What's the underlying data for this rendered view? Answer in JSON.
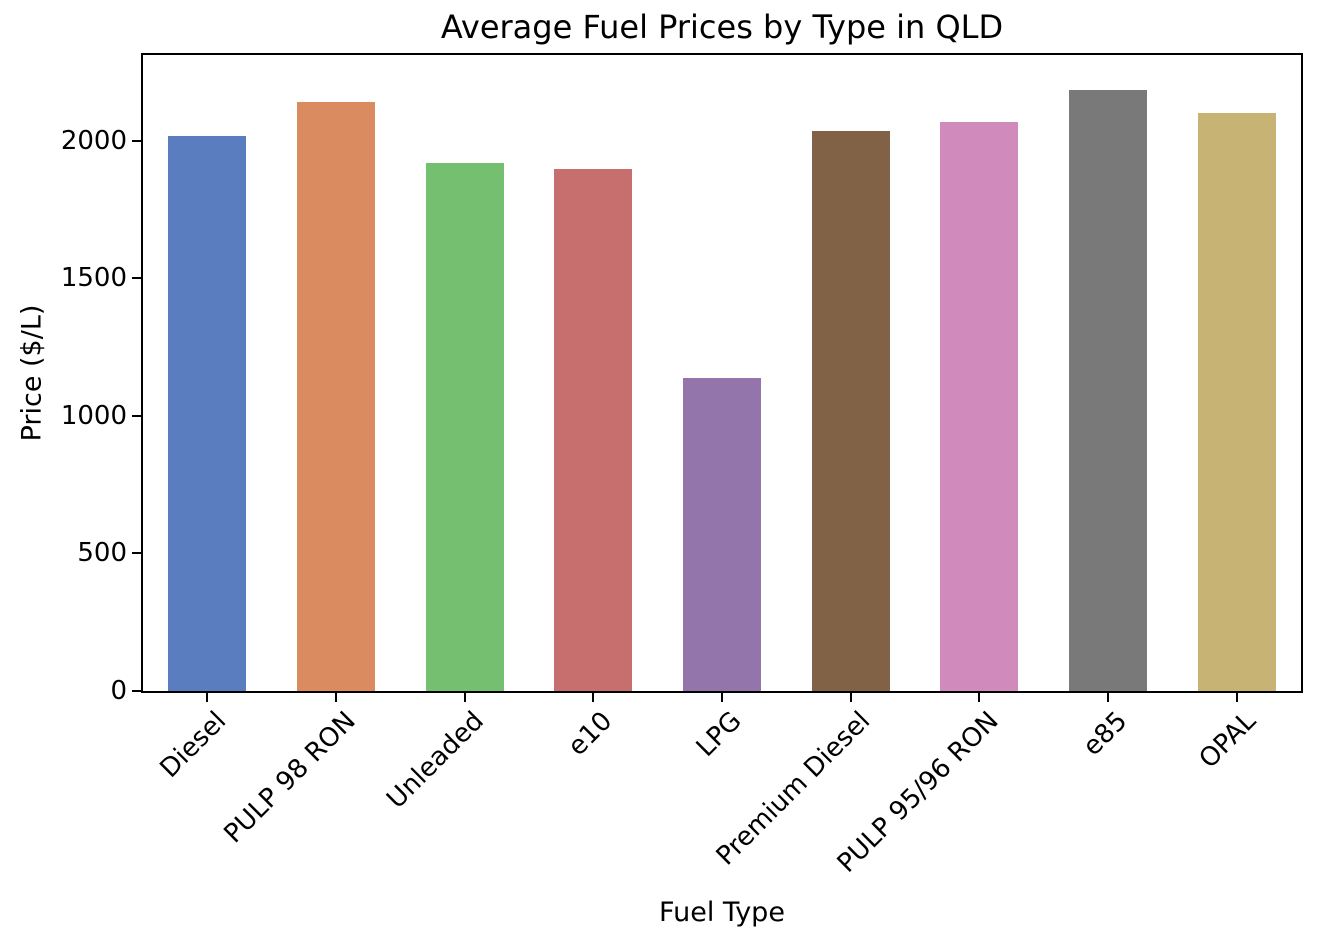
{
  "figure": {
    "background": "#ffffff",
    "spine_color": "#000000",
    "text_color": "#000000"
  },
  "chart_data": {
    "type": "bar",
    "title": "Average Fuel Prices by Type in QLD",
    "xlabel": "Fuel Type",
    "ylabel": "Price ($/L)",
    "categories": [
      "Diesel",
      "PULP 98 RON",
      "Unleaded",
      "e10",
      "LPG",
      "Premium Diesel",
      "PULP 95/96 RON",
      "e85",
      "OPAL"
    ],
    "values": [
      2018,
      2140,
      1920,
      1897,
      1136,
      2034,
      2066,
      2185,
      2100
    ],
    "bar_colors": [
      "#597dbf",
      "#da8b5f",
      "#75bf71",
      "#c76e6e",
      "#9475ab",
      "#826246",
      "#d08abb",
      "#797979",
      "#c7b475"
    ],
    "yticks": [
      0,
      500,
      1000,
      1500,
      2000
    ],
    "ylim": [
      0,
      2311
    ],
    "grid": false,
    "legend": false
  }
}
